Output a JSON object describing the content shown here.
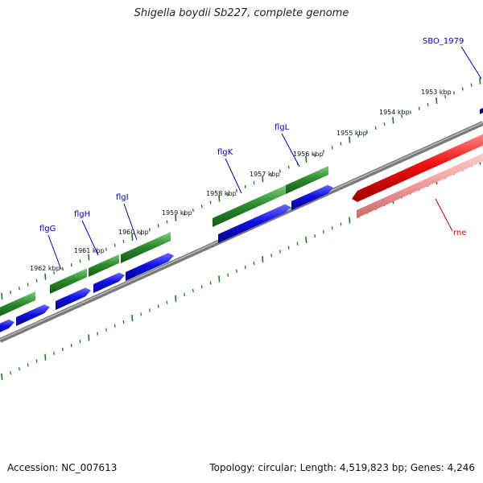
{
  "title": "Shigella boydii Sb227, complete genome",
  "footer": {
    "accession": "Accession: NC_007613",
    "stats": "Topology: circular; Length: 4,519,823 bp; Genes: 4,246"
  },
  "colors": {
    "forward_cds": "#2e8b2e",
    "reverse_cds": "#1010e0",
    "rna": "#ee1111",
    "rna_light": "#f19a9a",
    "backbone": "#7a7a7a",
    "tick": "#1b7a1b",
    "gene_label": "#0000bb",
    "rna_label": "#cc0000"
  },
  "ruler_labels": [
    "1953 kbp",
    "1954 kbp",
    "1955 kbp",
    "1956 kbp",
    "1957 kbp",
    "1958 kbp",
    "1959 kbp",
    "1960 kbp",
    "1961 kbp",
    "1962 kbp"
  ],
  "gene_labels": [
    "SBO_1979",
    "flgL",
    "flgK",
    "flgI",
    "flgH",
    "flgG"
  ],
  "rna_labels": [
    "rne"
  ]
}
